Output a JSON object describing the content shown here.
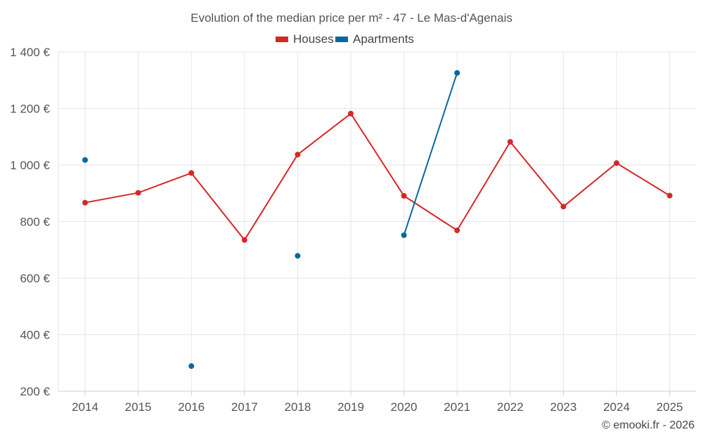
{
  "chart_data": {
    "type": "line",
    "title": "Evolution of the median price per m² - 47 - Le Mas-d'Agenais",
    "credit": "© emooki.fr - 2026",
    "categories": [
      "2014",
      "2015",
      "2016",
      "2017",
      "2018",
      "2019",
      "2020",
      "2021",
      "2022",
      "2023",
      "2024",
      "2025"
    ],
    "ylim": [
      200,
      1400
    ],
    "yticks": [
      200,
      400,
      600,
      800,
      1000,
      1200,
      1400
    ],
    "ytick_labels": [
      "200 €",
      "400 €",
      "600 €",
      "800 €",
      "1 000 €",
      "1 200 €",
      "1 400 €"
    ],
    "grid": true,
    "legend_position": "top-center",
    "series": [
      {
        "name": "Houses",
        "color": "#d62728",
        "values": [
          867,
          902,
          972,
          735,
          1037,
          1182,
          891,
          769,
          1082,
          853,
          1007,
          892
        ]
      },
      {
        "name": "Apartments",
        "color": "#0868a0",
        "values": [
          1018,
          null,
          289,
          null,
          679,
          null,
          752,
          1326,
          null,
          null,
          null,
          null
        ]
      }
    ]
  }
}
